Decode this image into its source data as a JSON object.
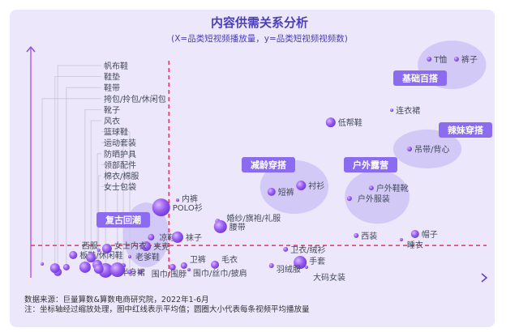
{
  "chart_data": {
    "type": "scatter",
    "title": "内容供需关系分析",
    "subtitle": "(X=品类短视频播放量，y=品类短视频视频数)",
    "xlabel": "",
    "ylabel": "",
    "xlim": [
      0,
      100
    ],
    "ylim": [
      0,
      100
    ],
    "grid": false,
    "axis_tick_labels": false,
    "average_lines": {
      "x": 30.3,
      "y": 14.1,
      "color": "#e8335f"
    },
    "bubble_color": "#9a5cf0",
    "points": [
      {
        "label": "T恤",
        "x": 87.4,
        "y": 95.4,
        "size": 3
      },
      {
        "label": "裤子",
        "x": 93.4,
        "y": 95.4,
        "size": 3
      },
      {
        "label": "连衣裙",
        "x": 79.2,
        "y": 73.1,
        "size": 2
      },
      {
        "label": "低帮鞋",
        "x": 65.8,
        "y": 67.8,
        "size": 6
      },
      {
        "label": "吊带/背心",
        "x": 83.1,
        "y": 56.2,
        "size": 3
      },
      {
        "label": "衬衫",
        "x": 59.3,
        "y": 40.3,
        "size": 6
      },
      {
        "label": "短裤",
        "x": 52.8,
        "y": 37.5,
        "size": 5
      },
      {
        "label": "户外鞋靴",
        "x": 74.7,
        "y": 39.2,
        "size": 3
      },
      {
        "label": "户外服装",
        "x": 69.9,
        "y": 34.6,
        "size": 3
      },
      {
        "label": "内裤",
        "x": 32.2,
        "y": 33.9,
        "size": 2
      },
      {
        "label": "POLO衫",
        "x": 28.6,
        "y": 30.7,
        "size": 11
      },
      {
        "label": "婚纱/旗袍/礼服",
        "x": 41.0,
        "y": 24.7,
        "size": 3
      },
      {
        "label": "腰带",
        "x": 41.6,
        "y": 22.3,
        "size": 8
      },
      {
        "label": "凉鞋",
        "x": 26.4,
        "y": 17.7,
        "size": 4
      },
      {
        "label": "夹克",
        "x": 25.3,
        "y": 13.8,
        "size": 6
      },
      {
        "label": "袜子",
        "x": 32.2,
        "y": 17.7,
        "size": 7
      },
      {
        "label": "西装",
        "x": 71.4,
        "y": 18.4,
        "size": 3
      },
      {
        "label": "帽子",
        "x": 84.3,
        "y": 19.1,
        "size": 5
      },
      {
        "label": "睡衣",
        "x": 81.3,
        "y": 16.6,
        "size": 2
      },
      {
        "label": "卫衣/绒衫",
        "x": 55.9,
        "y": 12.4,
        "size": 3
      },
      {
        "label": "手套",
        "x": 59.1,
        "y": 6.7,
        "size": 8
      },
      {
        "label": "大码女装",
        "x": 60.5,
        "y": 4.6,
        "size": 2
      },
      {
        "label": "羽绒服",
        "x": 52.8,
        "y": 5.3,
        "size": 3
      },
      {
        "label": "毛衣",
        "x": 40.4,
        "y": 5.7,
        "size": 5
      },
      {
        "label": "卫裤",
        "x": 33.6,
        "y": 5.3,
        "size": 4
      },
      {
        "label": "围巾/丝巾/披肩",
        "x": 34.7,
        "y": 3.5,
        "size": 2
      },
      {
        "label": "围巾/围脖",
        "x": 31.1,
        "y": 4.6,
        "size": 4
      },
      {
        "label": "半身裙",
        "x": 24.0,
        "y": 2.5,
        "size": 3
      },
      {
        "label": "老爹鞋",
        "x": 21.7,
        "y": 9.2,
        "size": 2
      },
      {
        "label": "女士内衣",
        "x": 16.7,
        "y": 12.7,
        "size": 6
      },
      {
        "label": "西服",
        "x": 14.9,
        "y": 12.0,
        "size": 2
      },
      {
        "label": "板鞋/休闲鞋",
        "x": 9.3,
        "y": 9.9,
        "size": 5
      },
      {
        "label": "帆布鞋",
        "x": 5.9,
        "y": 2.5,
        "size": 5,
        "leader": true
      },
      {
        "label": "鞋垫",
        "x": 5.3,
        "y": 4.2,
        "size": 6,
        "leader": true
      },
      {
        "label": "鞋带",
        "x": 7.8,
        "y": 4.6,
        "size": 4,
        "leader": true
      },
      {
        "label": "挎包/拎包/休闲包",
        "x": 2.5,
        "y": 6.0,
        "size": 2,
        "leader": true
      },
      {
        "label": "靴子",
        "x": 11.9,
        "y": 4.6,
        "size": 7,
        "leader": true
      },
      {
        "label": "风衣",
        "x": 13.2,
        "y": 8.8,
        "size": 6,
        "leader": true
      },
      {
        "label": "篮球鞋",
        "x": 21.7,
        "y": 2.5,
        "size": 3,
        "leader": true
      },
      {
        "label": "运动套装",
        "x": 20.3,
        "y": 5.3,
        "size": 3,
        "leader": true
      },
      {
        "label": "防晒护具",
        "x": 14.6,
        "y": 5.7,
        "size": 6,
        "leader": true
      },
      {
        "label": "领部配件",
        "x": 16.4,
        "y": 3.2,
        "size": 9,
        "leader": true
      },
      {
        "label": "棉衣/棉服",
        "x": 14.9,
        "y": 3.9,
        "size": 6,
        "leader": true
      },
      {
        "label": "女士包袋",
        "x": 19.0,
        "y": 3.5,
        "size": 9,
        "leader": true
      }
    ],
    "groups": [
      {
        "label": "基础百搭",
        "cx": 92.4,
        "cy": 92.9,
        "rx": 7.5,
        "ry": 10.6
      },
      {
        "label": "辣妹穿搭",
        "cx": 87.0,
        "cy": 56.2,
        "rx": 7.5,
        "ry": 8.5
      },
      {
        "label": "减龄穿搭",
        "cx": 57.8,
        "cy": 39.6,
        "rx": 7.5,
        "ry": 11.7
      },
      {
        "label": "户外露营",
        "cx": 76.0,
        "cy": 35.3,
        "rx": 7.1,
        "ry": 11.7
      },
      {
        "label": "复古回潮",
        "cx": 25.3,
        "cy": 18.7,
        "rx": 5.0,
        "ry": 14.1
      }
    ]
  },
  "footer": {
    "source": "数据来源：巨量算数&算数电商研究院，2022年1-6月",
    "note": "注：坐标轴经过缩放处理，图中红线表示平均值；圆圈大小代表每条视频平均播放量"
  }
}
